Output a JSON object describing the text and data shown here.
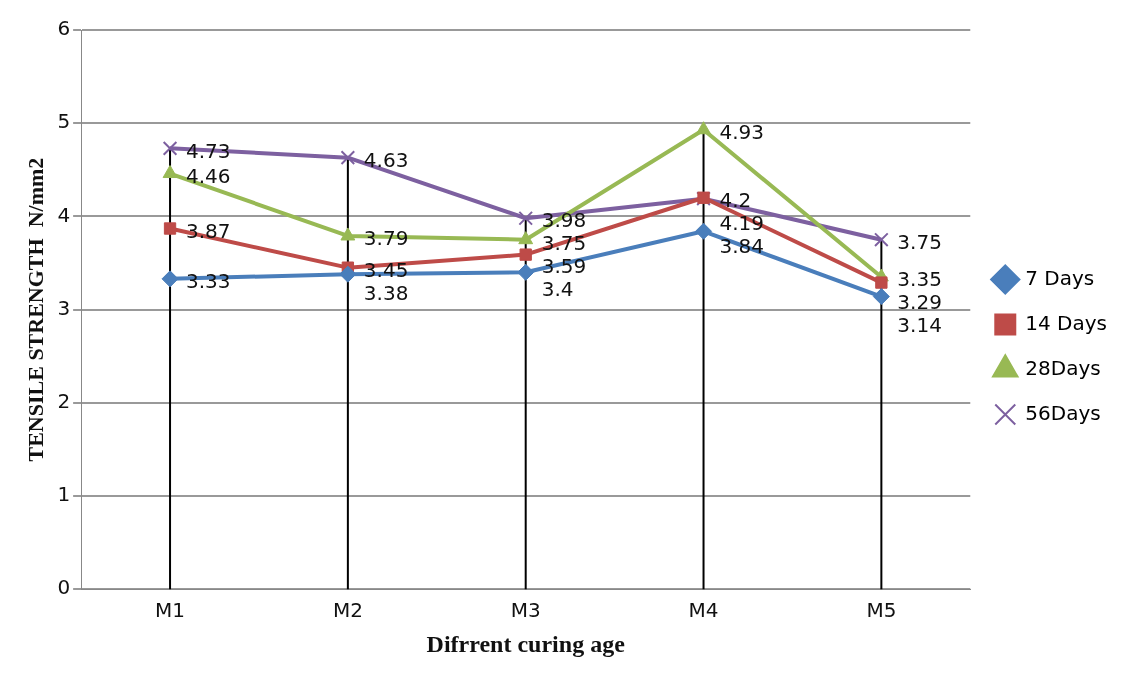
{
  "chart_data": {
    "type": "line",
    "xlabel": "Difrrent curing age",
    "ylabel": "TENSILE STRENGTH  N/mm2",
    "categories": [
      "M1",
      "M2",
      "M3",
      "M4",
      "M5"
    ],
    "series": [
      {
        "name": "7 Days",
        "color": "#4a7ebb",
        "marker": "diamond",
        "values": [
          3.33,
          3.38,
          3.4,
          3.84,
          3.14
        ]
      },
      {
        "name": "14 Days",
        "color": "#be4b48",
        "marker": "square",
        "values": [
          3.87,
          3.45,
          3.59,
          4.2,
          3.29
        ]
      },
      {
        "name": "28Days",
        "color": "#98b954",
        "marker": "triangle",
        "values": [
          4.46,
          3.79,
          3.75,
          4.93,
          3.35
        ]
      },
      {
        "name": "56Days",
        "color": "#7d60a0",
        "marker": "cross",
        "values": [
          4.73,
          4.63,
          3.98,
          4.19,
          3.75
        ]
      }
    ],
    "ylim": [
      0,
      6
    ],
    "yticks": [
      0,
      1,
      2,
      3,
      4,
      5,
      6
    ],
    "grid": true,
    "legend": "right",
    "data_labels": true
  }
}
